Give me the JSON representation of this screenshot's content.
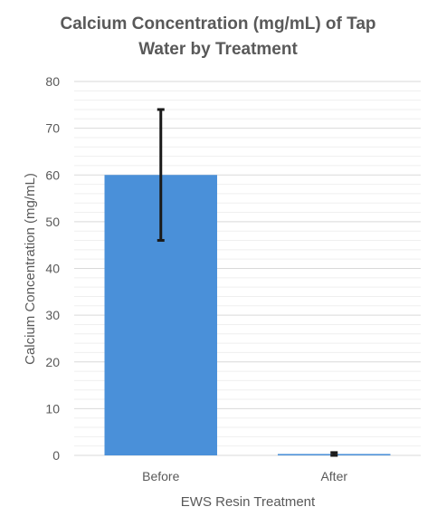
{
  "chart_data": {
    "type": "bar",
    "title_lines": [
      "Calcium Concentration (mg/mL) of Tap",
      "Water by Treatment"
    ],
    "xlabel": "EWS Resin Treatment",
    "ylabel": "Calcium Concentration (mg/mL)",
    "categories": [
      "Before",
      "After"
    ],
    "values": [
      60,
      0.3
    ],
    "error_bars": [
      14,
      0.3
    ],
    "ylim": [
      0,
      80
    ],
    "yticks": [
      0,
      10,
      20,
      30,
      40,
      50,
      60,
      70,
      80
    ],
    "minor_grid_step": 2,
    "grid": true,
    "bar_color": "#4a90d9",
    "error_color": "#1a1a1a"
  }
}
